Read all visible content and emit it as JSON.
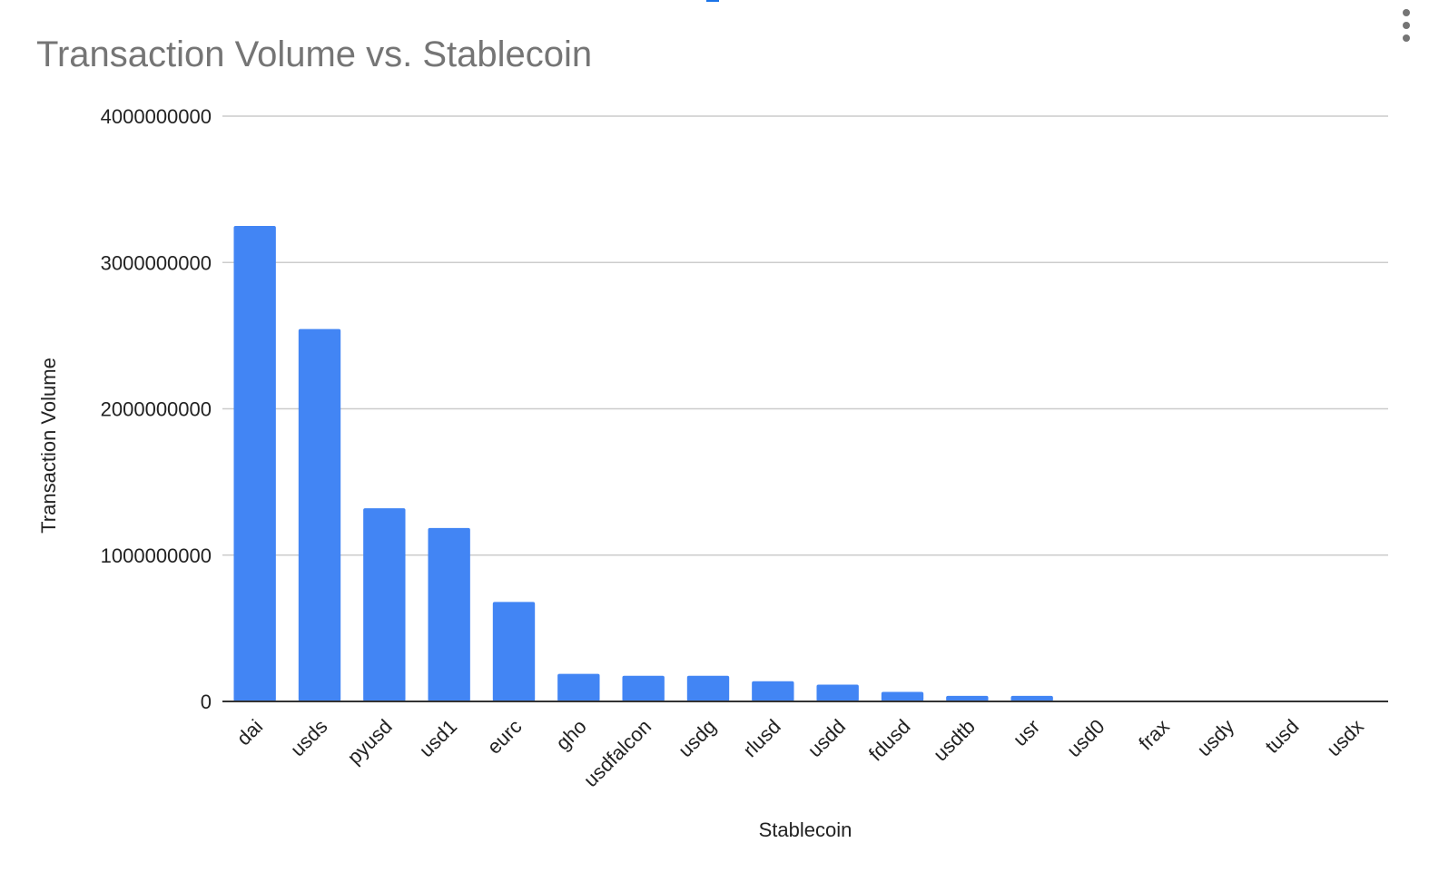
{
  "chart_data": {
    "type": "bar",
    "title": "Transaction Volume vs. Stablecoin",
    "xlabel": "Stablecoin",
    "ylabel": "Transaction Volume",
    "ylim": [
      0,
      4000000000
    ],
    "yticks": [
      "0",
      "1000000000",
      "2000000000",
      "3000000000",
      "4000000000"
    ],
    "grid": true,
    "legend": "none",
    "bar_color": "#4285f4",
    "categories": [
      "dai",
      "usds",
      "pyusd",
      "usd1",
      "eurc",
      "gho",
      "usdfalcon",
      "usdg",
      "rlusd",
      "usdd",
      "fdusd",
      "usdtb",
      "usr",
      "usd0",
      "frax",
      "usdy",
      "tusd",
      "usdx"
    ],
    "values": [
      3250000000,
      2545000000,
      1320000000,
      1185000000,
      680000000,
      188000000,
      175000000,
      175000000,
      138000000,
      115000000,
      65000000,
      38000000,
      38000000,
      6000000,
      5000000,
      1000000,
      500000,
      300000
    ]
  },
  "colors": {
    "grid": "#cccccc",
    "axis": "#333333",
    "title": "#757575",
    "accent": "#1a73e8"
  },
  "menu": {
    "icon": "more-vertical-icon"
  }
}
